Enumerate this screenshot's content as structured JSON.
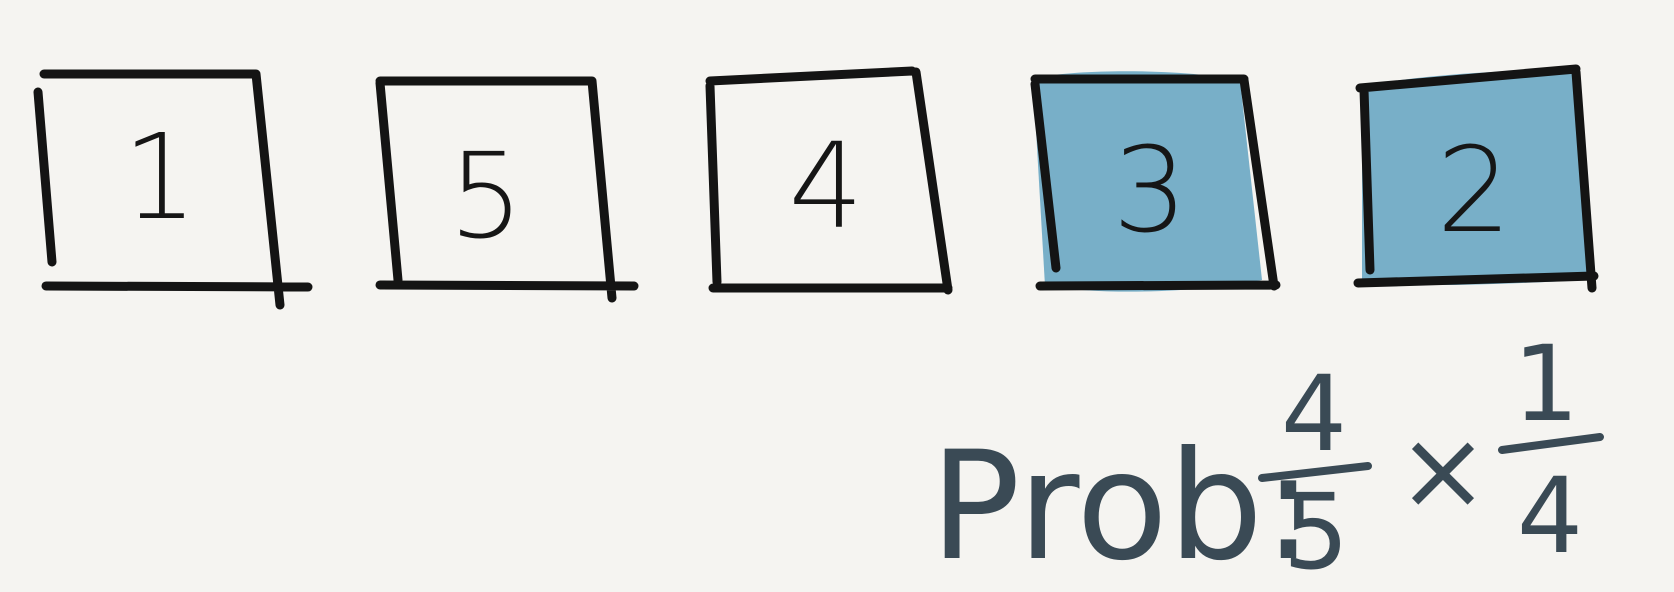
{
  "boxes": [
    {
      "label": "1",
      "highlighted": false
    },
    {
      "label": "5",
      "highlighted": false
    },
    {
      "label": "4",
      "highlighted": false
    },
    {
      "label": "3",
      "highlighted": true
    },
    {
      "label": "2",
      "highlighted": true
    }
  ],
  "highlight_color": "#78afc8",
  "prob": {
    "label": "Prob:",
    "fraction1": {
      "numerator": "4",
      "denominator": "5"
    },
    "operator": "×",
    "fraction2": {
      "numerator": "1",
      "denominator": "4"
    }
  }
}
